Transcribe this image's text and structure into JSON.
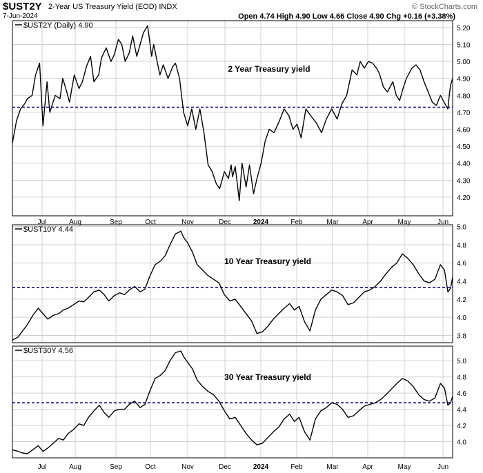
{
  "header": {
    "symbol": "$UST2Y",
    "description": "2-Year US Treasury Yield (EOD) INDX",
    "date": "7-Jun-2024",
    "brand": "© StockCharts.com",
    "ohlc": "Open 4.74  High 4.90  Low 4.66  Close 4.90  Chg +0.16 (+3.38%)"
  },
  "colors": {
    "line": "#000000",
    "reference": "#00008b",
    "grid": "#d0d0d0",
    "frame": "#000000"
  },
  "chart_data": [
    {
      "type": "line",
      "legend": "$UST2Y (Daily) 4.90",
      "annotation": "2 Year Treasury yield",
      "reference_line": 4.73,
      "ylim": [
        4.09,
        5.24
      ],
      "yticks": [
        4.2,
        4.3,
        4.4,
        4.5,
        4.6,
        4.7,
        4.8,
        4.9,
        5.0,
        5.1,
        5.2
      ],
      "ytick_labels": [
        "4.20",
        "4.30",
        "4.40",
        "4.50",
        "4.60",
        "4.70",
        "4.80",
        "4.90",
        "5.00",
        "5.10",
        "5.20"
      ],
      "x_categories": [
        "Jul",
        "Aug",
        "Sep",
        "Oct",
        "Nov",
        "Dec",
        "2024",
        "Feb",
        "Mar",
        "Apr",
        "May",
        "Jun"
      ],
      "x": [
        0,
        6,
        12,
        18,
        22,
        29,
        34,
        40,
        45,
        51,
        55,
        63,
        70,
        74,
        80,
        84,
        91,
        98,
        103,
        109,
        115,
        120,
        127,
        131,
        138,
        145,
        150,
        156,
        161,
        166,
        172,
        177,
        183,
        188,
        193,
        199,
        205,
        208,
        213,
        217,
        222,
        229,
        236,
        240,
        246,
        252,
        258,
        264,
        270,
        276,
        282,
        288,
        294,
        300,
        305,
        312,
        318,
        322,
        324,
        328,
        334,
        338,
        344,
        349,
        355,
        360,
        366,
        372,
        378,
        385,
        392,
        400,
        407,
        413,
        419,
        425,
        432,
        439,
        447,
        455,
        462,
        470,
        478,
        485,
        492,
        500,
        507,
        512,
        518,
        524,
        530,
        536,
        540,
        546,
        552,
        560,
        565,
        570,
        575,
        580,
        588,
        594,
        600,
        606,
        612,
        618,
        624,
        630,
        634,
        638,
        641,
        643,
        645,
        648
      ],
      "y": [
        4.52,
        4.65,
        4.72,
        4.75,
        4.78,
        4.8,
        4.92,
        4.99,
        4.62,
        4.88,
        4.7,
        4.8,
        4.78,
        4.9,
        4.82,
        4.76,
        4.92,
        4.84,
        4.88,
        4.97,
        5.03,
        4.88,
        4.92,
        5.02,
        5.08,
        5.0,
        5.04,
        5.13,
        5.1,
        5.0,
        5.05,
        5.15,
        5.03,
        5.1,
        5.17,
        5.21,
        5.03,
        5.1,
        5.0,
        4.92,
        4.98,
        4.9,
        4.97,
        4.99,
        4.9,
        4.7,
        4.62,
        4.72,
        4.6,
        4.72,
        4.58,
        4.39,
        4.35,
        4.28,
        4.25,
        4.35,
        4.31,
        4.39,
        4.32,
        4.38,
        4.18,
        4.4,
        4.26,
        4.39,
        4.22,
        4.31,
        4.4,
        4.53,
        4.6,
        4.58,
        4.64,
        4.72,
        4.68,
        4.6,
        4.63,
        4.55,
        4.72,
        4.68,
        4.64,
        4.58,
        4.66,
        4.72,
        4.66,
        4.75,
        4.8,
        4.95,
        4.92,
        5.0,
        4.96,
        5.0,
        4.99,
        4.96,
        4.93,
        4.85,
        4.82,
        4.88,
        4.8,
        4.77,
        4.84,
        4.9,
        4.96,
        4.98,
        4.95,
        4.88,
        4.82,
        4.76,
        4.74,
        4.8,
        4.77,
        4.74,
        4.72,
        4.8,
        4.86,
        4.9
      ]
    },
    {
      "type": "line",
      "legend": "$UST10Y 4.44",
      "annotation": "10 Year Treasury yield",
      "reference_line": 4.33,
      "ylim": [
        3.72,
        5.02
      ],
      "yticks": [
        3.8,
        4.0,
        4.2,
        4.4,
        4.6,
        4.8,
        5.0
      ],
      "ytick_labels": [
        "3.8",
        "4.0",
        "4.2",
        "4.4",
        "4.6",
        "4.8",
        "5.0"
      ],
      "x_categories": [
        "Jul",
        "Aug",
        "Sep",
        "Oct",
        "Nov",
        "Dec",
        "2024",
        "Feb",
        "Mar",
        "Apr",
        "May",
        "Jun"
      ],
      "x": [
        0,
        8,
        15,
        22,
        30,
        38,
        45,
        52,
        60,
        68,
        75,
        82,
        90,
        98,
        105,
        112,
        120,
        128,
        135,
        142,
        150,
        158,
        165,
        172,
        180,
        188,
        195,
        202,
        210,
        218,
        225,
        232,
        240,
        248,
        252,
        258,
        265,
        272,
        280,
        288,
        296,
        304,
        312,
        320,
        328,
        336,
        344,
        352,
        360,
        368,
        376,
        384,
        392,
        400,
        408,
        415,
        422,
        430,
        438,
        446,
        454,
        462,
        470,
        478,
        486,
        494,
        502,
        510,
        518,
        526,
        534,
        542,
        550,
        558,
        566,
        574,
        582,
        590,
        598,
        606,
        614,
        622,
        630,
        636,
        641,
        645,
        648
      ],
      "y": [
        3.75,
        3.78,
        3.85,
        3.92,
        4.02,
        4.1,
        4.04,
        3.98,
        4.02,
        4.04,
        4.08,
        4.1,
        4.14,
        4.18,
        4.17,
        4.22,
        4.28,
        4.3,
        4.25,
        4.18,
        4.24,
        4.27,
        4.25,
        4.3,
        4.34,
        4.28,
        4.31,
        4.45,
        4.58,
        4.62,
        4.68,
        4.8,
        4.92,
        4.95,
        4.88,
        4.82,
        4.72,
        4.58,
        4.52,
        4.46,
        4.42,
        4.38,
        4.25,
        4.18,
        4.2,
        4.12,
        4.04,
        3.96,
        3.82,
        3.84,
        3.9,
        3.98,
        4.04,
        4.1,
        4.15,
        4.08,
        4.12,
        3.95,
        3.85,
        4.08,
        4.2,
        4.25,
        4.3,
        4.28,
        4.24,
        4.14,
        4.16,
        4.22,
        4.28,
        4.3,
        4.34,
        4.4,
        4.48,
        4.55,
        4.6,
        4.7,
        4.65,
        4.58,
        4.48,
        4.4,
        4.38,
        4.42,
        4.58,
        4.52,
        4.28,
        4.32,
        4.44
      ]
    },
    {
      "type": "line",
      "legend": "$UST30Y 4.56",
      "annotation": "30 Year Treasury yield",
      "reference_line": 4.48,
      "ylim": [
        3.8,
        5.18
      ],
      "yticks": [
        4.0,
        4.2,
        4.4,
        4.6,
        4.8,
        5.0
      ],
      "ytick_labels": [
        "4.0",
        "4.2",
        "4.4",
        "4.6",
        "4.8",
        "5.0"
      ],
      "x_categories": [
        "Jul",
        "Aug",
        "Sep",
        "Oct",
        "Nov",
        "Dec",
        "2024",
        "Feb",
        "Mar",
        "Apr",
        "May",
        "Jun"
      ],
      "x": [
        0,
        8,
        15,
        22,
        30,
        38,
        45,
        52,
        60,
        68,
        75,
        82,
        90,
        98,
        105,
        112,
        120,
        128,
        135,
        142,
        150,
        158,
        165,
        172,
        180,
        188,
        195,
        202,
        210,
        218,
        225,
        232,
        240,
        248,
        252,
        258,
        265,
        272,
        280,
        288,
        296,
        304,
        312,
        320,
        328,
        336,
        344,
        352,
        360,
        368,
        376,
        384,
        392,
        400,
        408,
        415,
        422,
        430,
        438,
        446,
        454,
        462,
        470,
        478,
        486,
        494,
        502,
        510,
        518,
        526,
        534,
        542,
        550,
        558,
        566,
        574,
        582,
        590,
        598,
        606,
        614,
        622,
        630,
        636,
        641,
        645,
        648
      ],
      "y": [
        3.9,
        3.88,
        3.86,
        3.85,
        3.9,
        3.95,
        3.88,
        3.92,
        3.98,
        4.04,
        4.02,
        4.1,
        4.15,
        4.22,
        4.2,
        4.3,
        4.38,
        4.45,
        4.36,
        4.3,
        4.38,
        4.4,
        4.4,
        4.46,
        4.5,
        4.42,
        4.46,
        4.62,
        4.78,
        4.82,
        4.88,
        5.0,
        5.1,
        5.12,
        5.05,
        4.98,
        4.9,
        4.76,
        4.68,
        4.62,
        4.58,
        4.5,
        4.38,
        4.28,
        4.3,
        4.2,
        4.1,
        4.02,
        3.96,
        3.98,
        4.05,
        4.12,
        4.18,
        4.28,
        4.34,
        4.25,
        4.3,
        4.12,
        4.02,
        4.28,
        4.38,
        4.42,
        4.48,
        4.46,
        4.4,
        4.3,
        4.32,
        4.38,
        4.44,
        4.46,
        4.48,
        4.52,
        4.58,
        4.65,
        4.72,
        4.78,
        4.75,
        4.68,
        4.58,
        4.52,
        4.5,
        4.54,
        4.72,
        4.66,
        4.45,
        4.48,
        4.56
      ]
    }
  ]
}
